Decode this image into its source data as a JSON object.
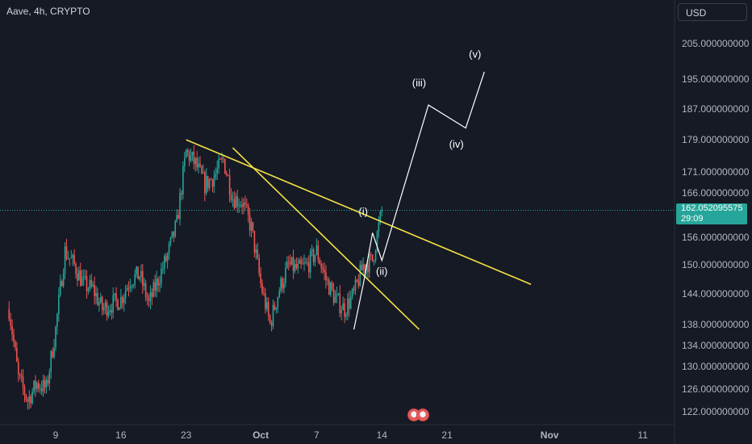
{
  "header": {
    "symbol_title": "Aave, 4h, CRYPTO",
    "currency_button": "USD"
  },
  "price_axis": {
    "labels": [
      "205.000000000",
      "195.000000000",
      "187.000000000",
      "179.000000000",
      "171.000000000",
      "166.000000000",
      "156.000000000",
      "150.000000000",
      "144.000000000",
      "138.000000000",
      "134.000000000",
      "130.000000000",
      "126.000000000",
      "122.000000000"
    ],
    "current_price": "162.052095575",
    "countdown": "29:09",
    "current_price_color": "#26a69a"
  },
  "time_axis": {
    "labels": [
      "9",
      "16",
      "23",
      "Oct",
      "7",
      "14",
      "21",
      "Nov",
      "11"
    ]
  },
  "colors": {
    "up": "#26a69a",
    "down": "#ef5350",
    "trendline": "#f5e243",
    "wave": "#ffffff",
    "background": "#161a25"
  },
  "chart_data": {
    "type": "candlestick",
    "symbol": "Aave",
    "interval": "4h",
    "y_axis": "USD, log scale",
    "current_price": 162.052095575,
    "price_path": [
      [
        "2024-09-04",
        141
      ],
      [
        "2024-09-05",
        128
      ],
      [
        "2024-09-06",
        124
      ],
      [
        "2024-09-07",
        127
      ],
      [
        "2024-09-08",
        126
      ],
      [
        "2024-09-09",
        137
      ],
      [
        "2024-09-10",
        153
      ],
      [
        "2024-09-11",
        150
      ],
      [
        "2024-09-12",
        146
      ],
      [
        "2024-09-13",
        145
      ],
      [
        "2024-09-14",
        141
      ],
      [
        "2024-09-15",
        142
      ],
      [
        "2024-09-16",
        143
      ],
      [
        "2024-09-17",
        147
      ],
      [
        "2024-09-18",
        148
      ],
      [
        "2024-09-19",
        142
      ],
      [
        "2024-09-20",
        147
      ],
      [
        "2024-09-21",
        152
      ],
      [
        "2024-09-22",
        159
      ],
      [
        "2024-09-23",
        176
      ],
      [
        "2024-09-24",
        173
      ],
      [
        "2024-09-25",
        168
      ],
      [
        "2024-09-26",
        170
      ],
      [
        "2024-09-27",
        174
      ],
      [
        "2024-09-28",
        165
      ],
      [
        "2024-09-29",
        164
      ],
      [
        "2024-09-30",
        158
      ],
      [
        "2024-10-01",
        146
      ],
      [
        "2024-10-02",
        138
      ],
      [
        "2024-10-03",
        145
      ],
      [
        "2024-10-04",
        150
      ],
      [
        "2024-10-05",
        149
      ],
      [
        "2024-10-06",
        150
      ],
      [
        "2024-10-07",
        153
      ],
      [
        "2024-10-08",
        147
      ],
      [
        "2024-10-09",
        143
      ],
      [
        "2024-10-10",
        141
      ],
      [
        "2024-10-11",
        144
      ],
      [
        "2024-10-12",
        150
      ],
      [
        "2024-10-13",
        151
      ],
      [
        "2024-10-14",
        162
      ]
    ],
    "trendlines": [
      {
        "from": [
          "2024-09-23",
          179
        ],
        "to": [
          "2024-10-30",
          146
        ]
      },
      {
        "from": [
          "2024-09-28",
          177
        ],
        "to": [
          "2024-10-18",
          137
        ]
      }
    ],
    "wave_projection": {
      "path": [
        [
          "2024-10-11",
          137
        ],
        [
          "2024-10-12",
          146
        ],
        [
          "2024-10-13",
          157
        ],
        [
          "2024-10-14",
          151
        ],
        [
          "2024-10-19",
          188
        ],
        [
          "2024-10-23",
          182
        ],
        [
          "2024-10-25",
          197
        ]
      ],
      "labels": [
        {
          "text": "(i)",
          "x": "2024-10-12",
          "y": 161
        },
        {
          "text": "(ii)",
          "x": "2024-10-14",
          "y": 148
        },
        {
          "text": "(iii)",
          "x": "2024-10-18",
          "y": 193
        },
        {
          "text": "(iv)",
          "x": "2024-10-22",
          "y": 177
        },
        {
          "text": "(v)",
          "x": "2024-10-24",
          "y": 201
        }
      ]
    }
  }
}
